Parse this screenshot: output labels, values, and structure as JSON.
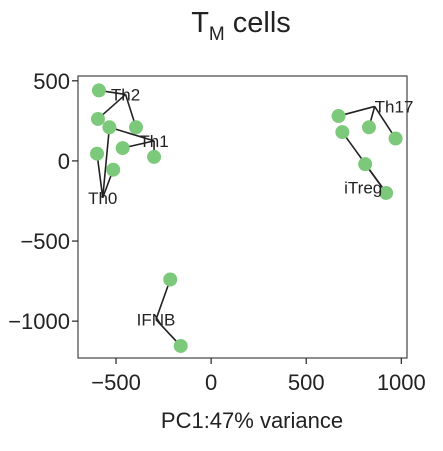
{
  "chart_data": {
    "type": "scatter",
    "title": {
      "main": "T",
      "subscript": "M",
      "rest": " cells"
    },
    "xlabel": "PC1:47% variance",
    "ylabel": "",
    "xlim": [
      -700,
      1030
    ],
    "ylim": [
      -1230,
      530
    ],
    "xticks": [
      {
        "value": -500,
        "label": "−500"
      },
      {
        "value": 0,
        "label": "0"
      },
      {
        "value": 500,
        "label": "500"
      },
      {
        "value": 1000,
        "label": "1000"
      }
    ],
    "yticks": [
      {
        "value": 500,
        "label": "500"
      },
      {
        "value": 0,
        "label": "0"
      },
      {
        "value": -500,
        "label": "−500"
      },
      {
        "value": -1000,
        "label": "−1000"
      }
    ],
    "grid": false,
    "point_color": "#7dc97b",
    "points": [
      {
        "x": -590,
        "y": 440
      },
      {
        "x": -595,
        "y": 262
      },
      {
        "x": -535,
        "y": 210
      },
      {
        "x": -465,
        "y": 80
      },
      {
        "x": -395,
        "y": 210
      },
      {
        "x": -300,
        "y": 25
      },
      {
        "x": -600,
        "y": 45
      },
      {
        "x": -515,
        "y": -55
      },
      {
        "x": 670,
        "y": 280
      },
      {
        "x": 690,
        "y": 180
      },
      {
        "x": 830,
        "y": 210
      },
      {
        "x": 970,
        "y": 140
      },
      {
        "x": 810,
        "y": -20
      },
      {
        "x": 920,
        "y": -200
      },
      {
        "x": -215,
        "y": -740
      },
      {
        "x": -160,
        "y": -1155
      }
    ],
    "labels": [
      {
        "text": "Th2",
        "x": -450,
        "y": 415,
        "anchor": "middle",
        "connects": [
          0,
          1,
          4
        ]
      },
      {
        "text": "Th1",
        "x": -300,
        "y": 125,
        "anchor": "middle",
        "connects": [
          2,
          3,
          5
        ]
      },
      {
        "text": "Th0",
        "x": -570,
        "y": -230,
        "anchor": "middle",
        "connects": [
          6,
          7,
          2
        ]
      },
      {
        "text": "Th17",
        "x": 860,
        "y": 340,
        "anchor": "start",
        "connects": [
          8,
          10,
          11
        ]
      },
      {
        "text": "iTreg",
        "x": 900,
        "y": -165,
        "anchor": "end",
        "connects": [
          9,
          12,
          13
        ]
      },
      {
        "text": "IFNB",
        "x": -290,
        "y": -990,
        "anchor": "middle",
        "connects": [
          14,
          15
        ]
      }
    ]
  }
}
